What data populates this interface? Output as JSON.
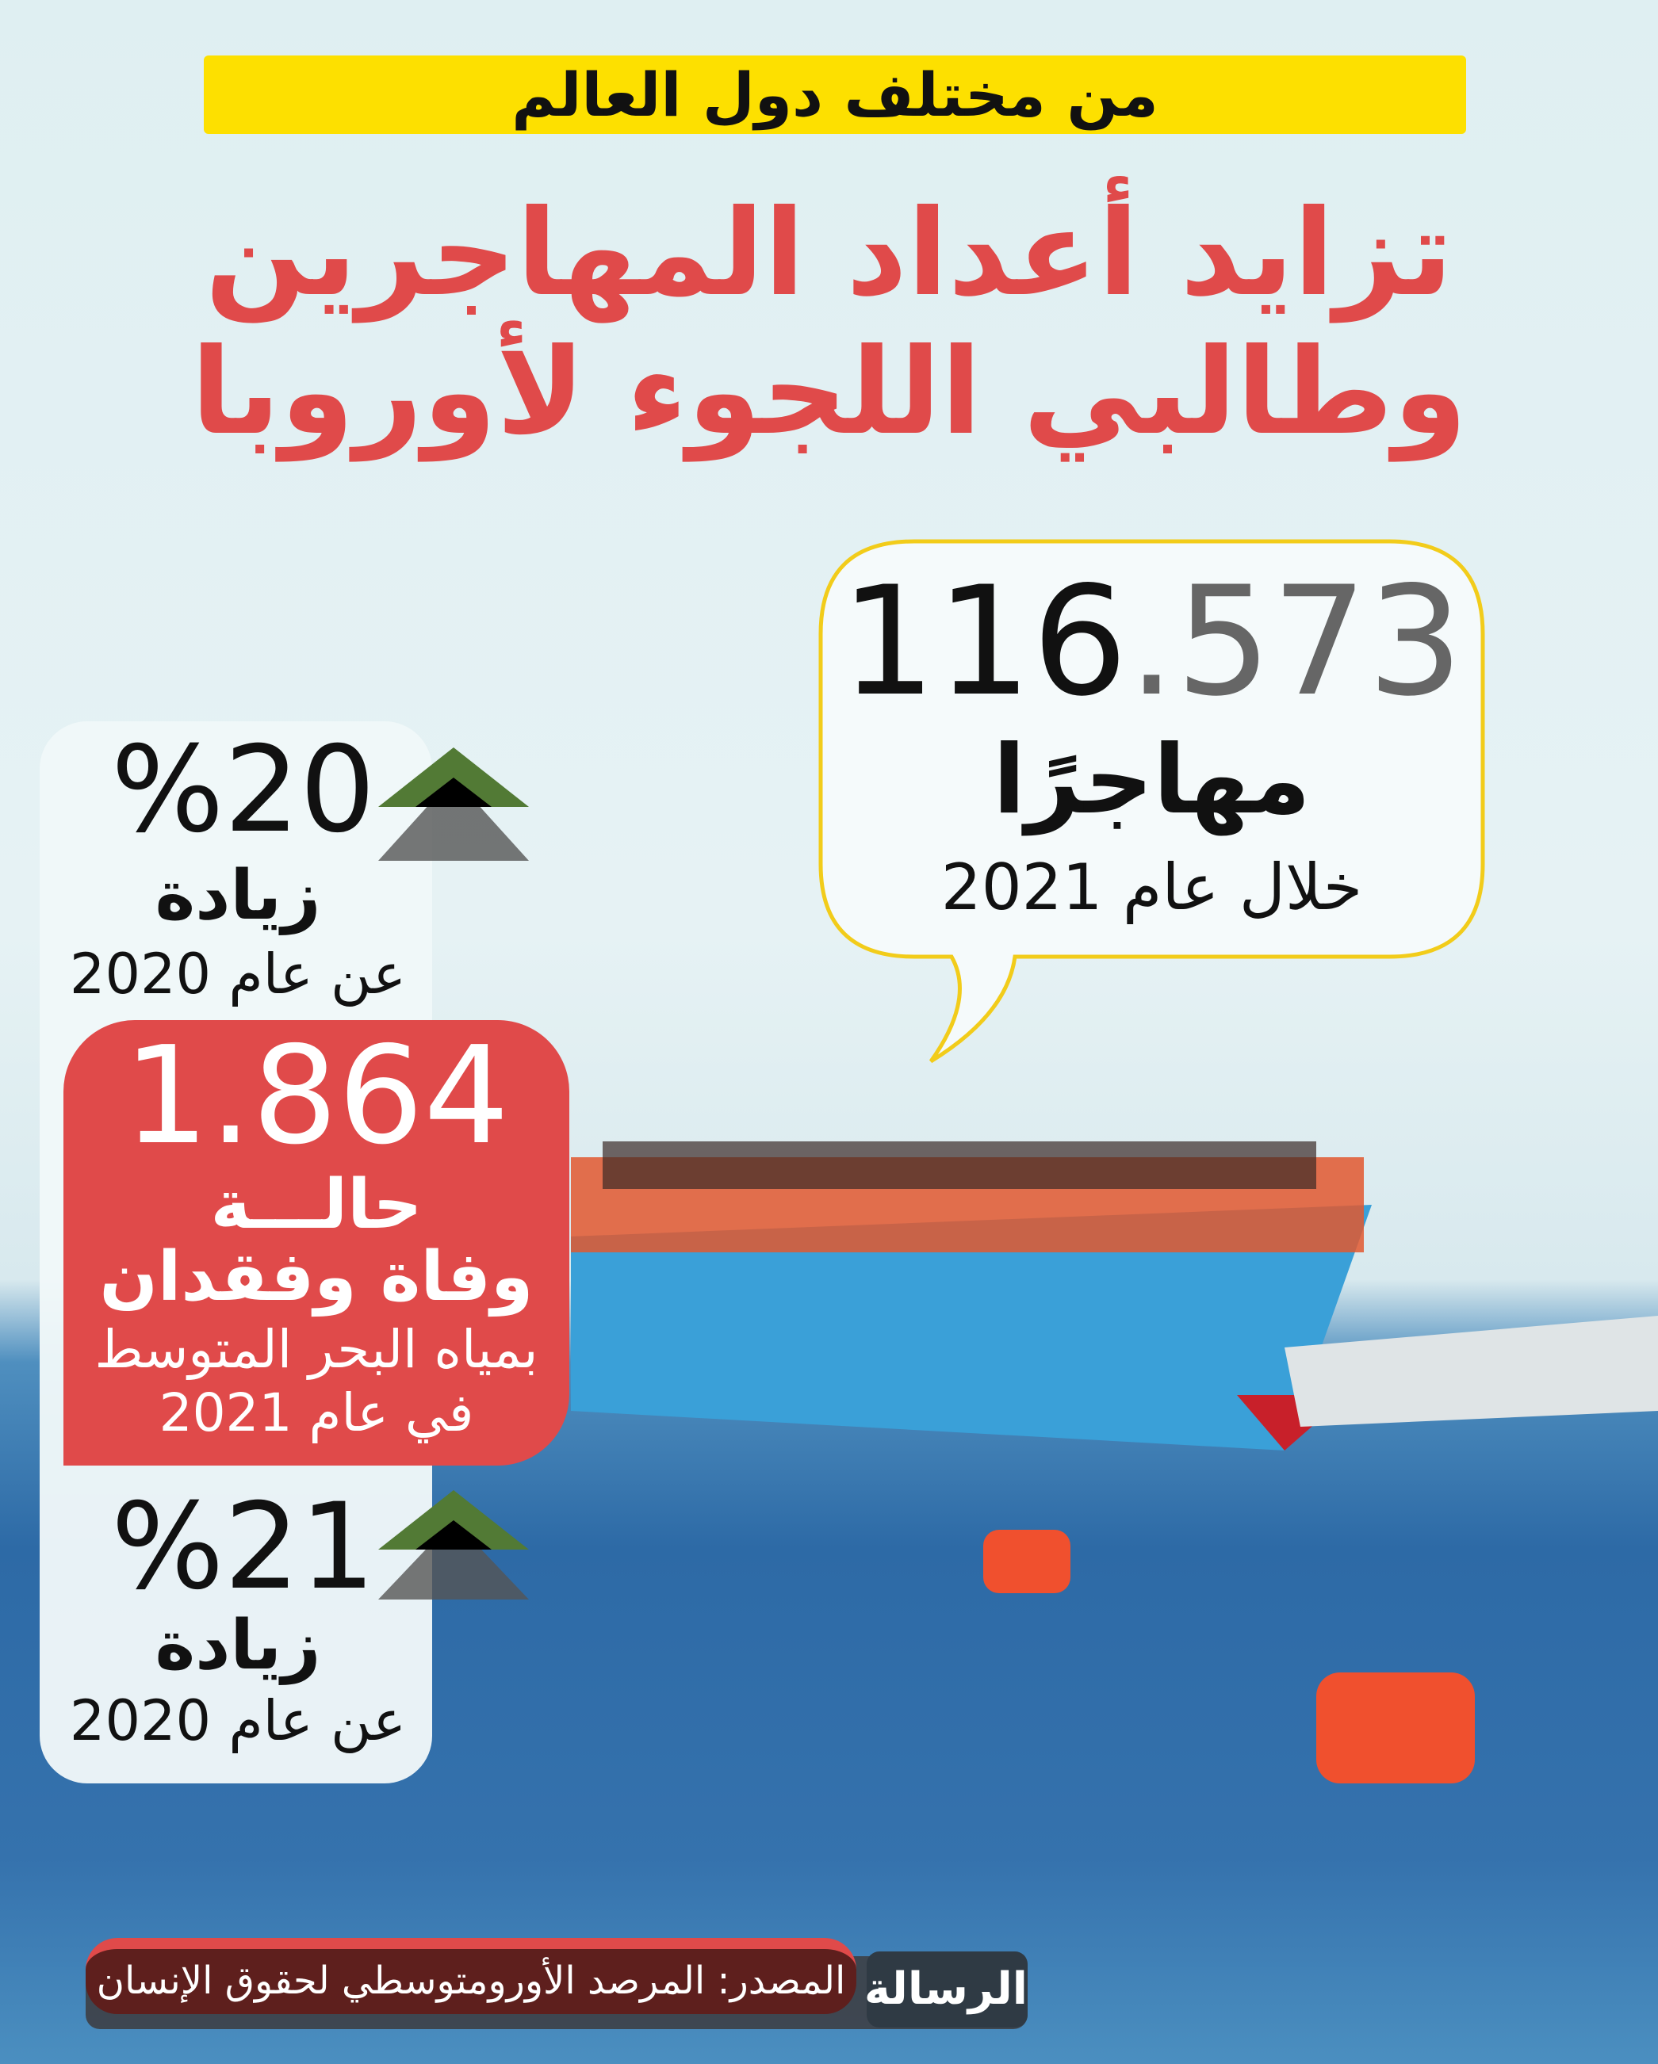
{
  "header": {
    "kicker": "من مختلف دول العالم",
    "title_line1": "تزايد أعداد المهاجرين",
    "title_line2": "وطالبي اللجوء لأوروبا"
  },
  "migrants": {
    "number_int": "116",
    "number_dec": ".573",
    "label": "مهاجرًا",
    "period": "خلال عام 2021"
  },
  "stat_top": {
    "percent": "%20",
    "label": "زيادة",
    "compare": "عن عام 2020",
    "icon": "up-arrow-triangles-icon"
  },
  "deaths": {
    "number": "1.864",
    "line1": "حالـــة",
    "line2": "وفاة وفقدان",
    "line3": "بمياه البحر المتوسط",
    "line4": "في عام 2021"
  },
  "stat_bottom": {
    "percent": "%21",
    "label": "زيادة",
    "compare": "عن عام 2020",
    "icon": "up-arrow-triangles-icon"
  },
  "footer": {
    "source": "المصدر: المرصد الأورومتوسطي لحقوق الإنسان",
    "logo": "الرسالة"
  },
  "colors": {
    "accent_red": "#e04a4a",
    "accent_yellow": "#fde000",
    "arrow_green": "#527a35"
  }
}
